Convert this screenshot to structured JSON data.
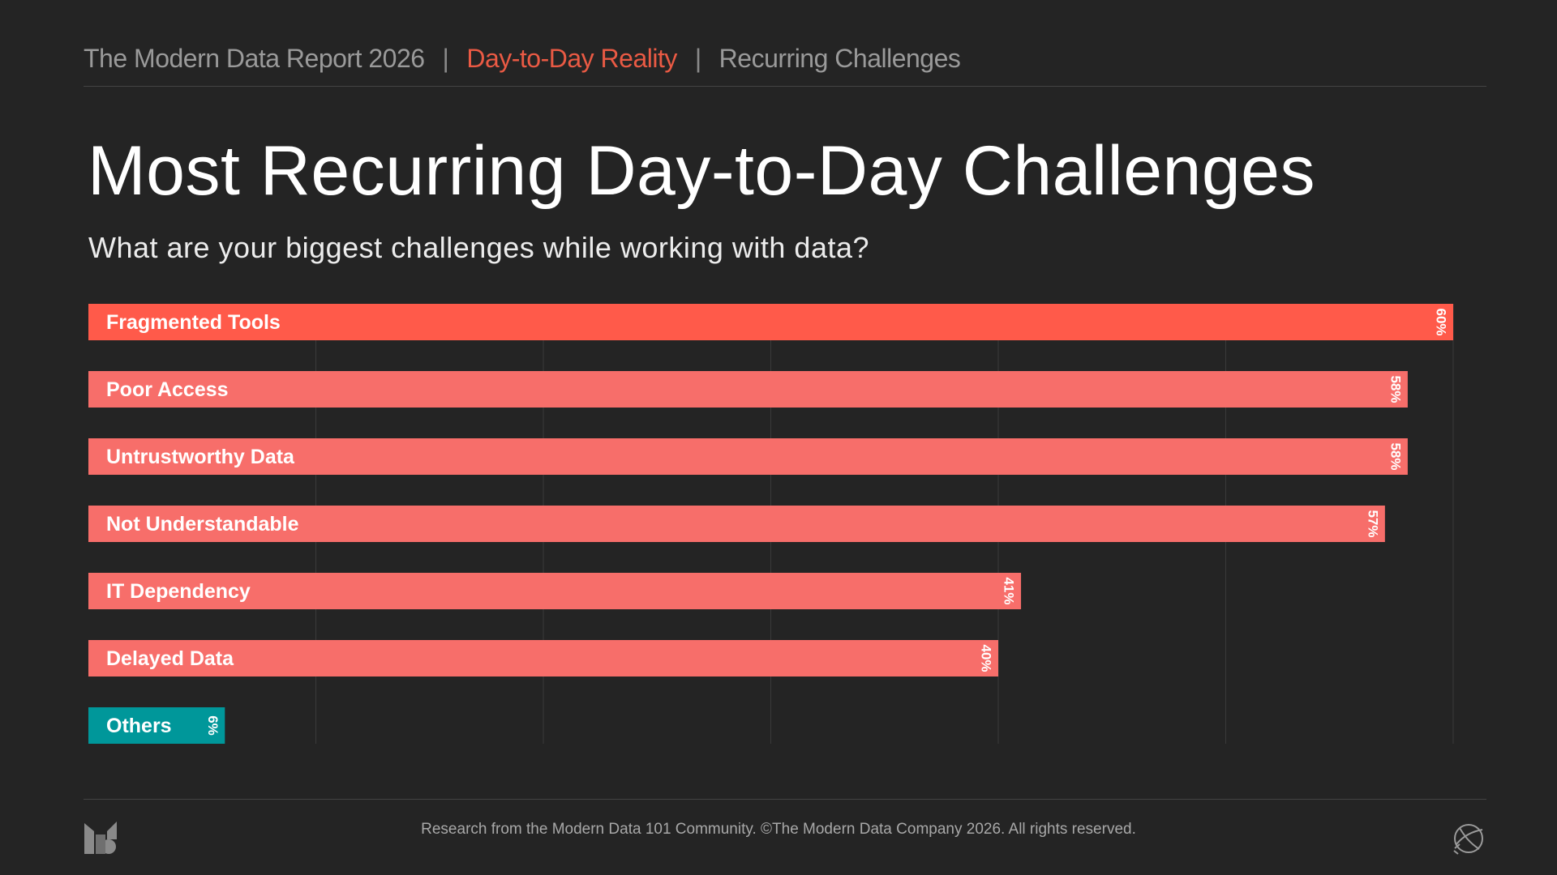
{
  "breadcrumb": {
    "report": "The Modern Data Report  2026",
    "separator": "|",
    "section": "Day-to-Day Reality",
    "page": "Recurring Challenges"
  },
  "footer": {
    "text": "Research from the Modern Data 101 Community. ©The Modern Data Company 2026. All rights reserved."
  },
  "icons": {
    "logo": "brand-logo-icon",
    "globe": "globe-icon"
  },
  "colors": {
    "background": "#242424",
    "primary_bar": "#ff5a4a",
    "secondary_bar": "#f76e6a",
    "others_bar": "#00979a",
    "accent_text": "#ea5a44"
  },
  "chart_data": {
    "type": "bar",
    "orientation": "horizontal",
    "title": "Most Recurring Day-to-Day Challenges",
    "subtitle": "What are your biggest challenges while working with data?",
    "categories": [
      "Fragmented Tools",
      "Poor Access",
      "Untrustworthy Data",
      "Not Understandable",
      "IT Dependency",
      "Delayed Data",
      "Others"
    ],
    "values": [
      60,
      58,
      58,
      57,
      41,
      40,
      6
    ],
    "value_labels": [
      "60%",
      "58%",
      "58%",
      "57%",
      "41%",
      "40%",
      "6%"
    ],
    "bar_colors": [
      "#ff5a4a",
      "#f76e6a",
      "#f76e6a",
      "#f76e6a",
      "#f76e6a",
      "#f76e6a",
      "#00979a"
    ],
    "xlim": [
      0,
      60
    ],
    "grid_values": [
      10,
      20,
      30,
      40,
      50,
      60
    ],
    "grid": true,
    "legend": "none"
  }
}
